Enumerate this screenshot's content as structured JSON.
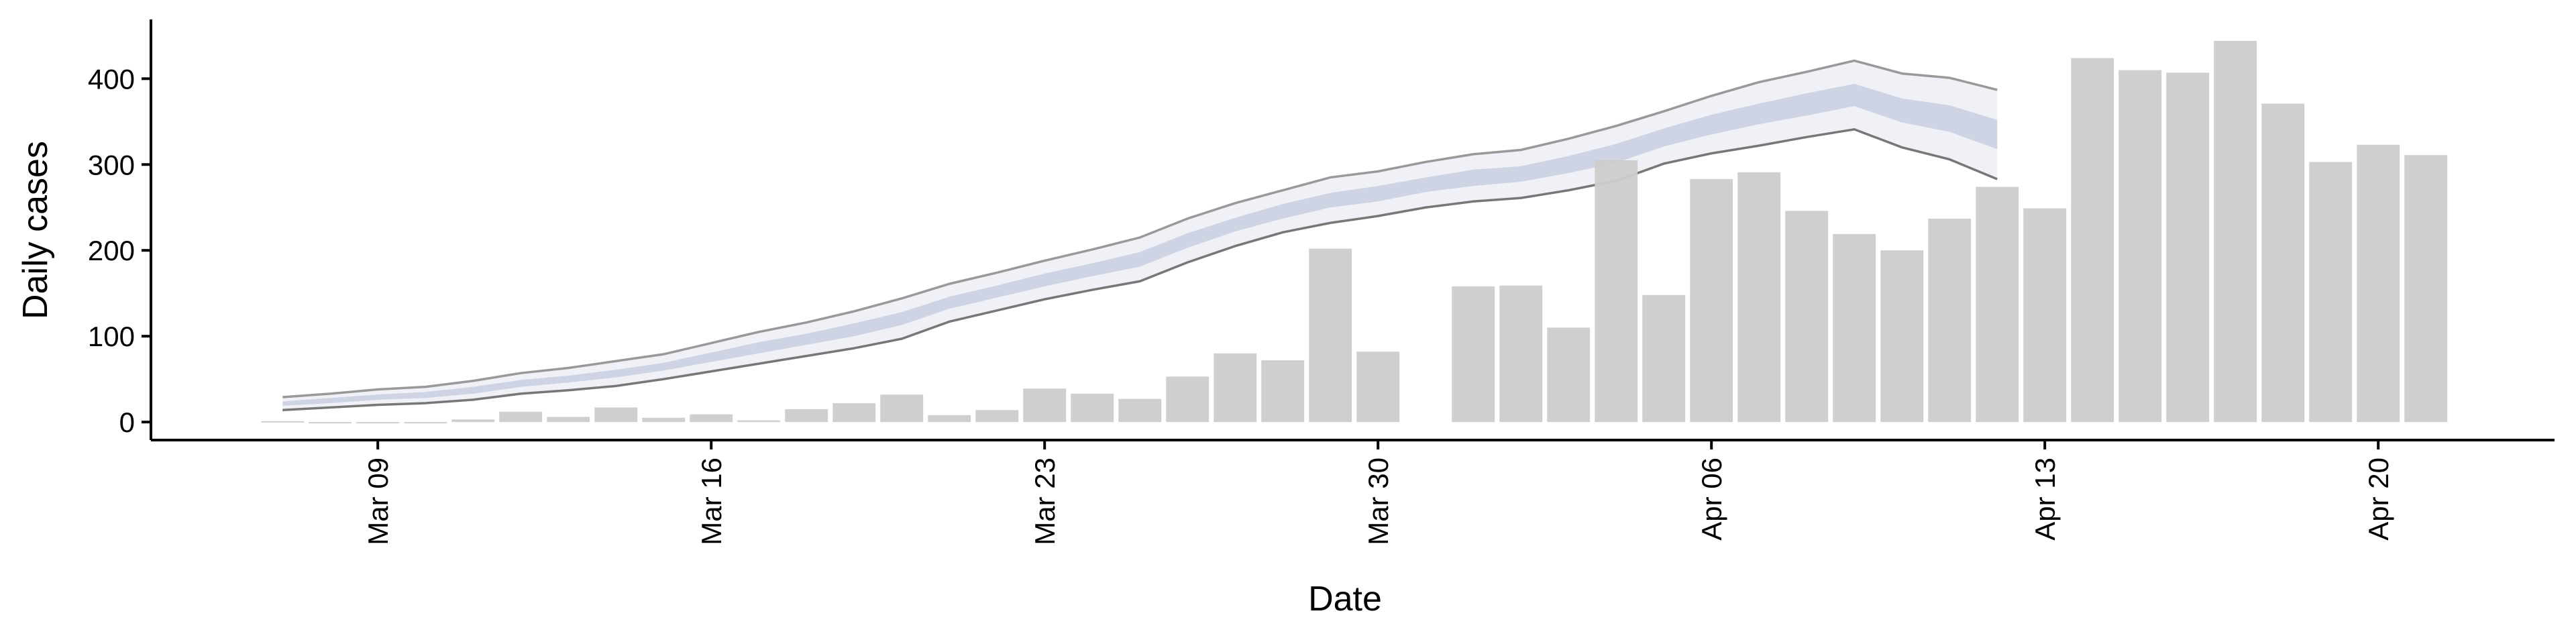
{
  "chart_data": {
    "type": "bar",
    "x_label": "Date",
    "y_label": "Daily cases",
    "categories": [
      null,
      null,
      "Mar 09",
      null,
      null,
      null,
      null,
      null,
      null,
      "Mar 16",
      null,
      null,
      null,
      null,
      null,
      null,
      "Mar 23",
      null,
      null,
      null,
      null,
      null,
      null,
      "Mar 30",
      null,
      null,
      null,
      null,
      null,
      null,
      "Apr 06",
      null,
      null,
      null,
      null,
      null,
      null,
      "Apr 13",
      null,
      null,
      null,
      null,
      null,
      null,
      "Apr 20",
      null
    ],
    "values": [
      1,
      0,
      0,
      0,
      3,
      12,
      6,
      17,
      5,
      9,
      2,
      15,
      22,
      32,
      8,
      14,
      39,
      33,
      27,
      53,
      80,
      72,
      202,
      82,
      null,
      158,
      159,
      110,
      305,
      148,
      283,
      291,
      246,
      219,
      200,
      237,
      274,
      249,
      424,
      410,
      407,
      444,
      371,
      303,
      323,
      311
    ],
    "color": "#cccccc",
    "bands": [
      {
        "color": "#eceef4",
        "line_colors": [
          "#999999",
          "#777777"
        ],
        "upper": [
          29,
          33,
          38,
          41,
          48,
          57,
          63,
          71,
          79,
          92,
          105,
          116,
          129,
          144,
          161,
          174,
          188,
          201,
          215,
          237,
          255,
          270,
          285,
          292,
          303,
          312,
          317,
          330,
          345,
          362,
          380,
          396,
          408,
          421,
          406,
          401,
          387,
          null,
          null,
          null,
          null,
          null,
          null,
          null,
          null,
          null
        ],
        "lower": [
          14,
          17,
          20,
          22,
          26,
          33,
          37,
          42,
          50,
          59,
          68,
          77,
          86,
          97,
          117,
          130,
          143,
          154,
          164,
          186,
          205,
          221,
          232,
          240,
          250,
          257,
          261,
          270,
          281,
          301,
          313,
          322,
          332,
          341,
          320,
          306,
          283,
          null,
          null,
          null,
          null,
          null,
          null,
          null,
          null,
          null
        ]
      },
      {
        "color": "#c9cfe0",
        "line_colors": [],
        "upper": [
          24,
          28,
          32,
          35,
          41,
          49,
          54,
          61,
          69,
          81,
          93,
          103,
          115,
          128,
          146,
          159,
          173,
          185,
          198,
          220,
          238,
          254,
          267,
          275,
          285,
          294,
          298,
          310,
          324,
          342,
          358,
          371,
          383,
          394,
          377,
          369,
          352,
          null,
          null,
          null,
          null,
          null,
          null,
          null,
          null,
          null
        ],
        "lower": [
          19,
          22,
          26,
          28,
          33,
          41,
          46,
          52,
          60,
          70,
          80,
          90,
          100,
          113,
          132,
          145,
          158,
          170,
          181,
          203,
          222,
          237,
          250,
          257,
          268,
          275,
          280,
          290,
          302,
          321,
          335,
          347,
          357,
          368,
          349,
          338,
          318,
          null,
          null,
          null,
          null,
          null,
          null,
          null,
          null,
          null
        ]
      }
    ],
    "ylim": [
      -21,
      469
    ],
    "yticks": [
      0,
      100,
      200,
      300,
      400
    ],
    "grid": false
  }
}
